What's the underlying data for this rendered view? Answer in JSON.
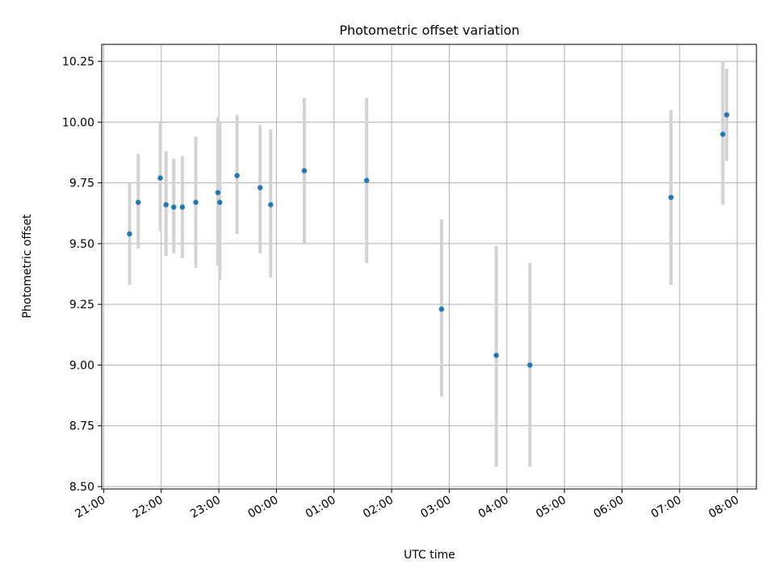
{
  "chart_data": {
    "type": "scatter",
    "title": "Photometric offset variation",
    "xlabel": "UTC time",
    "ylabel": "Photometric offset",
    "xlim": [
      "20:58",
      "08:20"
    ],
    "ylim": [
      8.49,
      10.32
    ],
    "grid": true,
    "x_ticks": [
      "21:00",
      "22:00",
      "23:00",
      "00:00",
      "01:00",
      "02:00",
      "03:00",
      "04:00",
      "05:00",
      "06:00",
      "07:00",
      "08:00"
    ],
    "y_ticks": [
      "8.50",
      "8.75",
      "9.00",
      "9.25",
      "9.50",
      "9.75",
      "10.00",
      "10.25"
    ],
    "point_color": "#1f77b4",
    "errorbar_color": "#d3d3d3",
    "points": [
      {
        "x": "21:27",
        "y": 9.54,
        "ylow": 9.33,
        "yhigh": 9.75
      },
      {
        "x": "21:36",
        "y": 9.67,
        "ylow": 9.48,
        "yhigh": 9.87
      },
      {
        "x": "21:59",
        "y": 9.77,
        "ylow": 9.55,
        "yhigh": 10.0
      },
      {
        "x": "22:05",
        "y": 9.66,
        "ylow": 9.45,
        "yhigh": 9.88
      },
      {
        "x": "22:13",
        "y": 9.65,
        "ylow": 9.46,
        "yhigh": 9.85
      },
      {
        "x": "22:22",
        "y": 9.65,
        "ylow": 9.44,
        "yhigh": 9.86
      },
      {
        "x": "22:36",
        "y": 9.67,
        "ylow": 9.4,
        "yhigh": 9.94
      },
      {
        "x": "22:59",
        "y": 9.71,
        "ylow": 9.41,
        "yhigh": 10.02
      },
      {
        "x": "23:01",
        "y": 9.67,
        "ylow": 9.35,
        "yhigh": 10.0
      },
      {
        "x": "23:19",
        "y": 9.78,
        "ylow": 9.54,
        "yhigh": 10.03
      },
      {
        "x": "23:43",
        "y": 9.73,
        "ylow": 9.46,
        "yhigh": 9.99
      },
      {
        "x": "23:54",
        "y": 9.66,
        "ylow": 9.36,
        "yhigh": 9.97
      },
      {
        "x": "00:29",
        "y": 9.8,
        "ylow": 9.5,
        "yhigh": 10.1
      },
      {
        "x": "01:34",
        "y": 9.76,
        "ylow": 9.42,
        "yhigh": 10.1
      },
      {
        "x": "02:52",
        "y": 9.23,
        "ylow": 8.87,
        "yhigh": 9.6
      },
      {
        "x": "03:49",
        "y": 9.04,
        "ylow": 8.58,
        "yhigh": 9.49
      },
      {
        "x": "04:24",
        "y": 9.0,
        "ylow": 8.58,
        "yhigh": 9.42
      },
      {
        "x": "06:51",
        "y": 9.69,
        "ylow": 9.33,
        "yhigh": 10.05
      },
      {
        "x": "07:45",
        "y": 9.95,
        "ylow": 9.66,
        "yhigh": 10.25
      },
      {
        "x": "07:49",
        "y": 10.03,
        "ylow": 9.84,
        "yhigh": 10.22
      }
    ]
  }
}
